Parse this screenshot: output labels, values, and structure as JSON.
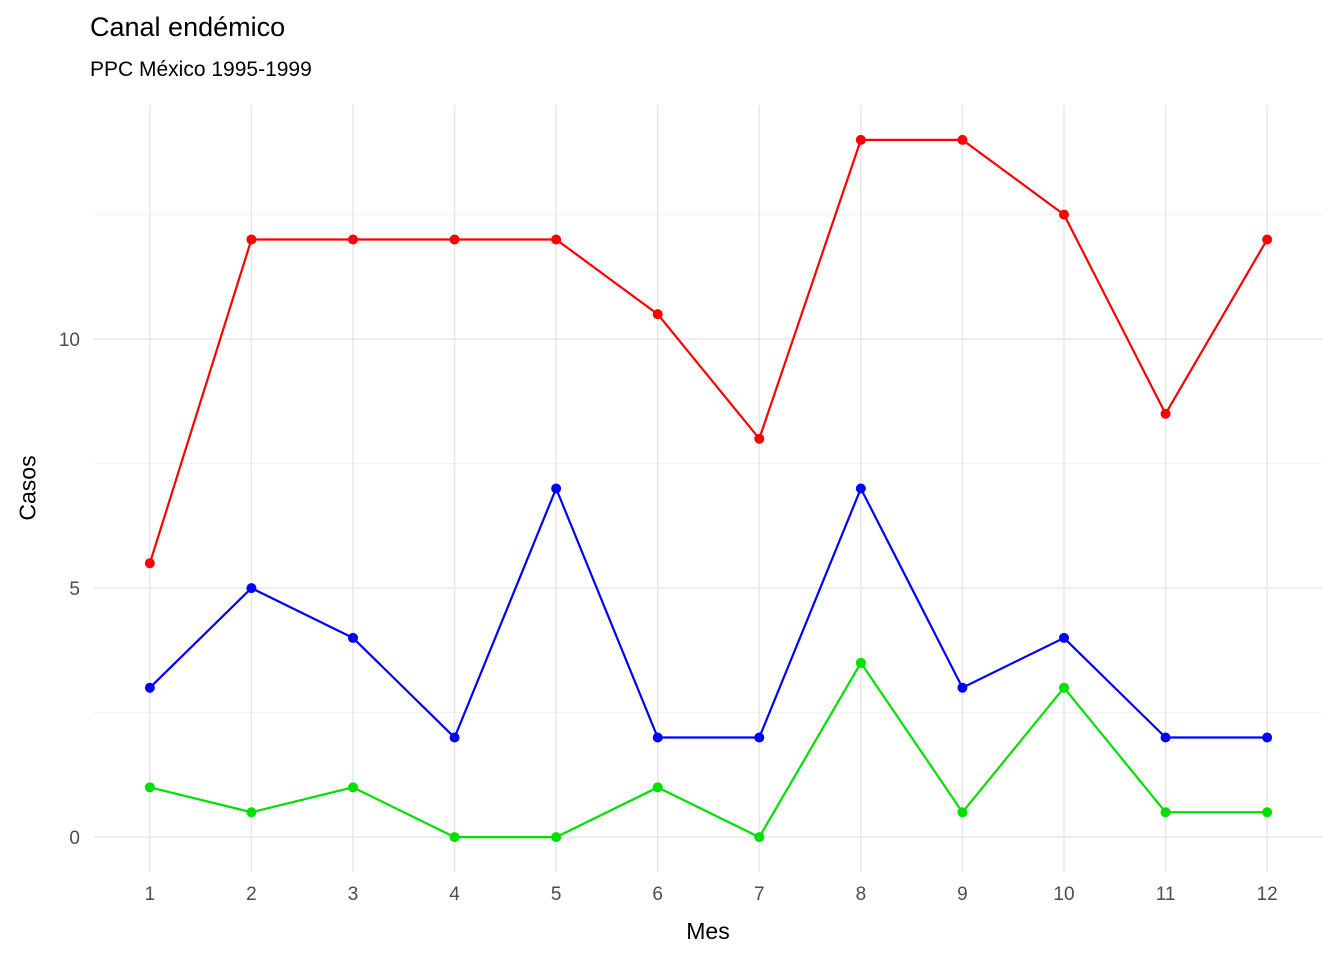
{
  "title": "Canal endémico",
  "subtitle": "PPC México 1995-1999",
  "chart_data": {
    "type": "line",
    "title": "Canal endémico",
    "subtitle": "PPC México 1995-1999",
    "xlabel": "Mes",
    "ylabel": "Casos",
    "x": [
      1,
      2,
      3,
      4,
      5,
      6,
      7,
      8,
      9,
      10,
      11,
      12
    ],
    "xticks": [
      1,
      2,
      3,
      4,
      5,
      6,
      7,
      8,
      9,
      10,
      11,
      12
    ],
    "yticks": [
      0,
      5,
      10
    ],
    "y_minor_gridlines": [
      2.5,
      7.5,
      12.5
    ],
    "xlim": [
      0.45,
      12.55
    ],
    "ylim": [
      -0.7,
      14.7
    ],
    "grid": "on",
    "legend": "none",
    "background": "#ffffff",
    "series": [
      {
        "name": "red",
        "color": "#ff0000",
        "values": [
          5.5,
          12,
          12,
          12,
          12,
          10.5,
          8,
          14,
          14,
          12.5,
          8.5,
          12
        ]
      },
      {
        "name": "blue",
        "color": "#0000ff",
        "values": [
          3,
          5,
          4,
          2,
          7,
          2,
          2,
          7,
          3,
          4,
          2,
          2
        ]
      },
      {
        "name": "green",
        "color": "#00e000",
        "values": [
          1,
          0.5,
          1,
          0,
          0,
          1,
          0,
          3.5,
          0.5,
          3,
          0.5,
          0.5
        ]
      }
    ]
  },
  "style": {
    "grid_major_color": "#e8e8e8",
    "grid_minor_color": "#f1f1f1",
    "tick_label_color": "#4d4d4d",
    "title_color": "#000000"
  }
}
